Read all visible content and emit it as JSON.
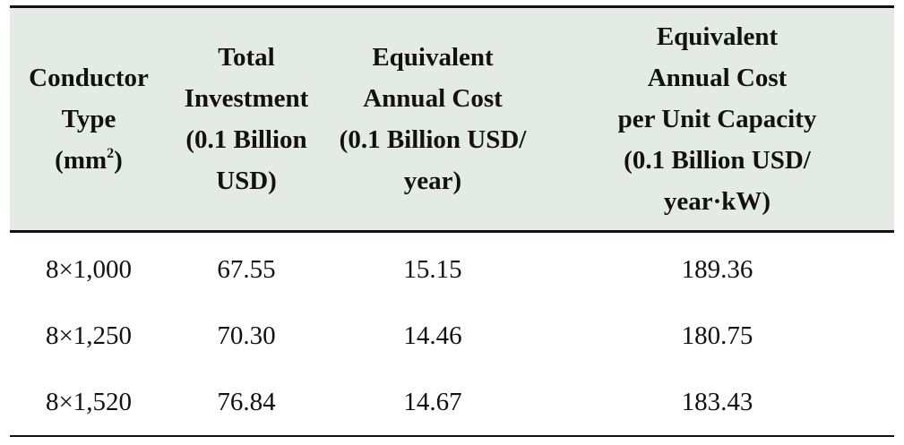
{
  "table": {
    "headers": [
      {
        "lines": [
          "Conductor",
          "Type"
        ],
        "unit": {
          "base": "(mm",
          "sup": "2",
          "close": ")"
        }
      },
      {
        "lines": [
          "Total",
          "Investment",
          "(0.1 Billion",
          "USD)"
        ]
      },
      {
        "lines": [
          "Equivalent",
          "Annual Cost",
          "(0.1 Billion USD/",
          "year)"
        ]
      },
      {
        "lines": [
          "Equivalent",
          "Annual Cost",
          "per Unit Capacity",
          "(0.1 Billion USD/",
          "year·kW)"
        ]
      }
    ],
    "rows": [
      [
        "8×1,000",
        "67.55",
        "15.15",
        "189.36"
      ],
      [
        "8×1,250",
        "70.30",
        "14.46",
        "180.75"
      ],
      [
        "8×1,520",
        "76.84",
        "14.67",
        "183.43"
      ]
    ]
  },
  "colors": {
    "header_bg": "#e4ebe4",
    "rule": "#111111"
  }
}
